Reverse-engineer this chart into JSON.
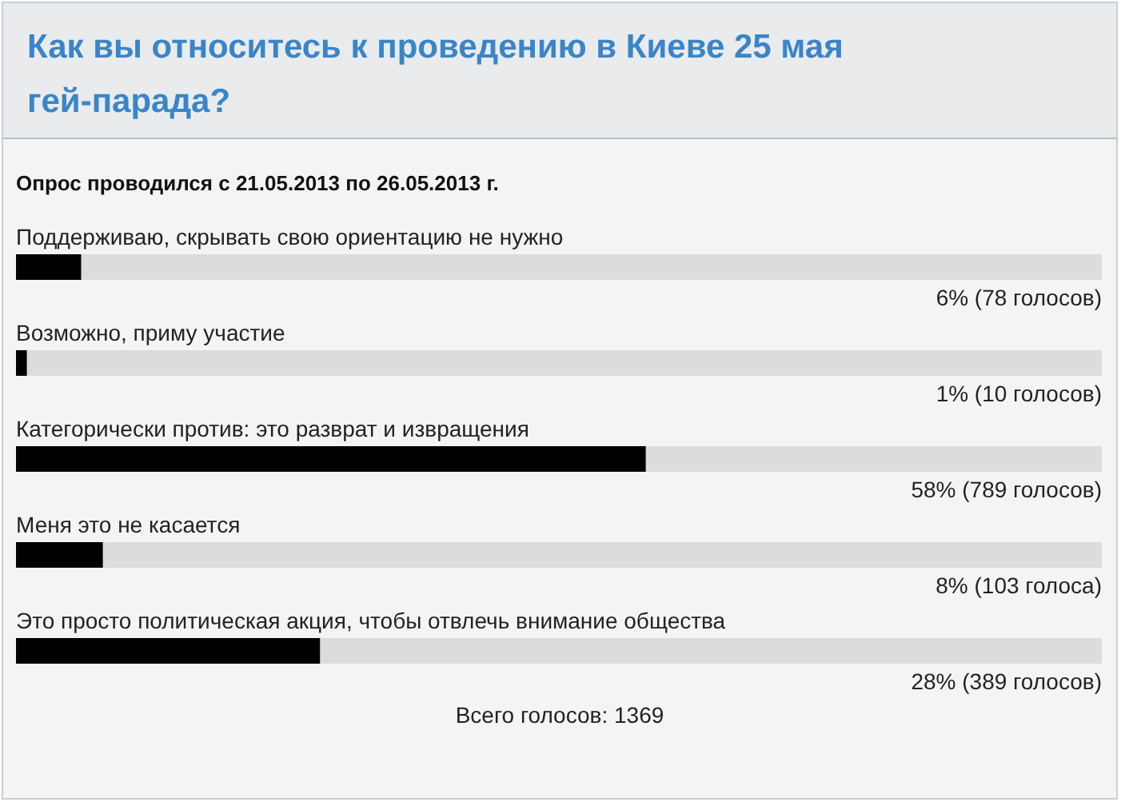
{
  "chart_data": {
    "type": "bar",
    "orientation": "horizontal",
    "title": "Как вы относитесь к проведению в Киеве 25 мая гей-парада?",
    "subtitle": "Опрос проводился с 21.05.2013 по 26.05.2013 г.",
    "categories": [
      "Поддерживаю, скрывать свою ориентацию не нужно",
      "Возможно, приму участие",
      "Категорически против: это разврат и извращения",
      "Меня это не касается",
      "Это просто политическая акция, чтобы отвлечь внимание общества"
    ],
    "values": [
      6,
      1,
      58,
      8,
      28
    ],
    "value_labels": [
      "6% (78 голосов)",
      "1% (10 голосов)",
      "58% (789 голосов)",
      "8% (103 голоса)",
      "28% (389 голосов)"
    ],
    "color": "#000000",
    "xlim": [
      0,
      100
    ],
    "annotations": [
      "Всего голосов: 1369"
    ]
  }
}
